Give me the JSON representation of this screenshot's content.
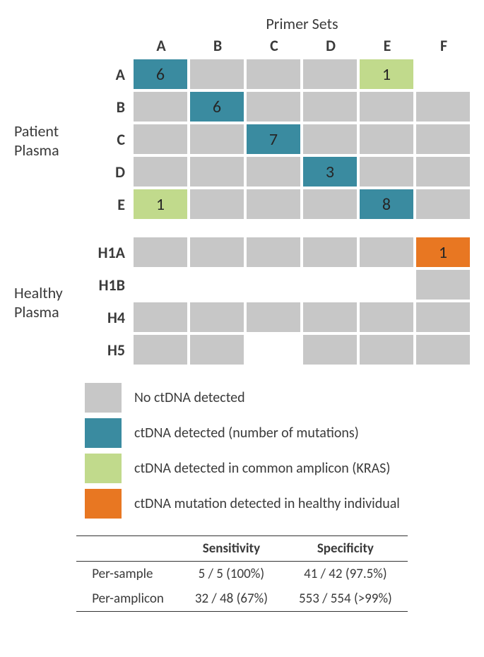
{
  "colors": {
    "none": "#c7c7c7",
    "detected": "#3a8ba0",
    "common": "#c1da8c",
    "healthy": "#e87722",
    "blank": "#ffffff"
  },
  "top_title": "Primer Sets",
  "columns": [
    "A",
    "B",
    "C",
    "D",
    "E",
    "F"
  ],
  "blocks": [
    {
      "label": "Patient\nPlasma",
      "rows": [
        {
          "label": "A",
          "cells": [
            {
              "s": "detected",
              "v": "6"
            },
            {
              "s": "none"
            },
            {
              "s": "none"
            },
            {
              "s": "none"
            },
            {
              "s": "common",
              "v": "1"
            },
            {
              "s": "blank"
            }
          ]
        },
        {
          "label": "B",
          "cells": [
            {
              "s": "none"
            },
            {
              "s": "detected",
              "v": "6"
            },
            {
              "s": "none"
            },
            {
              "s": "none"
            },
            {
              "s": "none"
            },
            {
              "s": "none"
            }
          ]
        },
        {
          "label": "C",
          "cells": [
            {
              "s": "none"
            },
            {
              "s": "none"
            },
            {
              "s": "detected",
              "v": "7"
            },
            {
              "s": "none"
            },
            {
              "s": "none"
            },
            {
              "s": "none"
            }
          ]
        },
        {
          "label": "D",
          "cells": [
            {
              "s": "none"
            },
            {
              "s": "none"
            },
            {
              "s": "none"
            },
            {
              "s": "detected",
              "v": "3"
            },
            {
              "s": "none"
            },
            {
              "s": "none"
            }
          ]
        },
        {
          "label": "E",
          "cells": [
            {
              "s": "common",
              "v": "1"
            },
            {
              "s": "none"
            },
            {
              "s": "none"
            },
            {
              "s": "none"
            },
            {
              "s": "detected",
              "v": "8"
            },
            {
              "s": "none"
            }
          ]
        }
      ]
    },
    {
      "label": "Healthy\nPlasma",
      "rows": [
        {
          "label": "H1A",
          "cells": [
            {
              "s": "none"
            },
            {
              "s": "none"
            },
            {
              "s": "none"
            },
            {
              "s": "none"
            },
            {
              "s": "none"
            },
            {
              "s": "healthy",
              "v": "1"
            }
          ]
        },
        {
          "label": "H1B",
          "cells": [
            {
              "s": "blank"
            },
            {
              "s": "blank"
            },
            {
              "s": "blank"
            },
            {
              "s": "blank"
            },
            {
              "s": "blank"
            },
            {
              "s": "none"
            }
          ]
        },
        {
          "label": "H4",
          "cells": [
            {
              "s": "none"
            },
            {
              "s": "none"
            },
            {
              "s": "none"
            },
            {
              "s": "none"
            },
            {
              "s": "none"
            },
            {
              "s": "none"
            }
          ]
        },
        {
          "label": "H5",
          "cells": [
            {
              "s": "none"
            },
            {
              "s": "none"
            },
            {
              "s": "blank"
            },
            {
              "s": "none"
            },
            {
              "s": "none"
            },
            {
              "s": "none"
            }
          ]
        }
      ]
    }
  ],
  "legend": [
    {
      "s": "none",
      "text": "No ctDNA detected"
    },
    {
      "s": "detected",
      "text": "ctDNA detected (number of mutations)"
    },
    {
      "s": "common",
      "text": "ctDNA detected in common amplicon (KRAS)"
    },
    {
      "s": "healthy",
      "text": "ctDNA mutation detected in healthy individual"
    }
  ],
  "stats": {
    "headers": [
      "",
      "Sensitivity",
      "Specificity"
    ],
    "rows": [
      [
        "Per-sample",
        "5 / 5 (100%)",
        "41 / 42 (97.5%)"
      ],
      [
        "Per-amplicon",
        "32 / 48 (67%)",
        "553 / 554 (>99%)"
      ]
    ]
  }
}
